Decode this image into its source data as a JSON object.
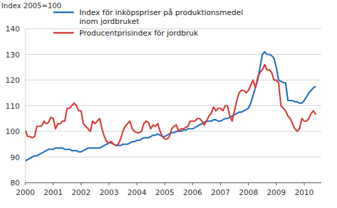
{
  "chart_data": {
    "type": "line",
    "y_label": "Index 2005=100",
    "categories": [
      "2000",
      null,
      null,
      null,
      null,
      null,
      null,
      null,
      null,
      null,
      null,
      null,
      "2001",
      null,
      null,
      null,
      null,
      null,
      null,
      null,
      null,
      null,
      null,
      null,
      "2002",
      null,
      null,
      null,
      null,
      null,
      null,
      null,
      null,
      null,
      null,
      null,
      "2003",
      null,
      null,
      null,
      null,
      null,
      null,
      null,
      null,
      null,
      null,
      null,
      "2004",
      null,
      null,
      null,
      null,
      null,
      null,
      null,
      null,
      null,
      null,
      null,
      "2005",
      null,
      null,
      null,
      null,
      null,
      null,
      null,
      null,
      null,
      null,
      null,
      "2006",
      null,
      null,
      null,
      null,
      null,
      null,
      null,
      null,
      null,
      null,
      null,
      "2007",
      null,
      null,
      null,
      null,
      null,
      null,
      null,
      null,
      null,
      null,
      null,
      "2008",
      null,
      null,
      null,
      null,
      null,
      null,
      null,
      null,
      null,
      null,
      null,
      "2009",
      null,
      null,
      null,
      null,
      null,
      null,
      null,
      null,
      null,
      null,
      null,
      "2010",
      null,
      null,
      null,
      null,
      null
    ],
    "series": [
      {
        "name": "Index för inköpspriser på produktionsmedel inom jordbruket",
        "color": "#2270c0",
        "values": [
          88.5,
          89,
          89.5,
          90,
          90.5,
          90.5,
          91,
          91.5,
          92,
          92.5,
          93,
          93,
          93,
          93.5,
          93.5,
          93.5,
          93.5,
          93,
          93,
          93,
          92.5,
          92.5,
          92.5,
          92,
          92,
          92.5,
          93,
          93.5,
          93.5,
          93.5,
          93.5,
          93.5,
          93.5,
          94,
          94.5,
          95,
          95.5,
          95.5,
          95,
          94.5,
          94.5,
          94.5,
          95,
          95,
          95,
          95.5,
          96,
          96,
          96.5,
          96.5,
          97,
          97.5,
          97.5,
          97.5,
          98,
          98.5,
          98.5,
          99,
          98.5,
          98,
          98,
          98.5,
          99,
          99.5,
          99.5,
          100,
          100,
          100,
          100.5,
          100.5,
          101,
          101,
          101,
          101.5,
          102,
          102.5,
          103,
          103.5,
          104,
          104,
          104,
          104.5,
          104.5,
          104,
          104,
          104.5,
          105,
          105,
          105.5,
          106,
          106.5,
          107,
          107.5,
          107.5,
          108,
          108.5,
          109,
          111,
          114,
          117,
          120,
          125,
          130,
          131,
          130,
          130,
          129.5,
          128.5,
          125,
          120,
          119.5,
          119,
          119,
          112,
          112,
          112,
          111.5,
          111.5,
          111,
          111,
          112,
          113.5,
          115,
          116,
          117,
          117.5
        ]
      },
      {
        "name": "Producentprisindex för jordbruk",
        "color": "#d63c36",
        "values": [
          100.5,
          98,
          98,
          97.5,
          98,
          102,
          102,
          102,
          104,
          103,
          103.5,
          105.5,
          105,
          101,
          103,
          103,
          104,
          104,
          109,
          109,
          110,
          111,
          110,
          108,
          108,
          103,
          102,
          101,
          100,
          104,
          103,
          104,
          105,
          101,
          98,
          96,
          95.5,
          96,
          95,
          94.5,
          95,
          97,
          100,
          102,
          103,
          104,
          101,
          100,
          99.5,
          99.5,
          100,
          103,
          104,
          103.5,
          101,
          102.5,
          102,
          103,
          100,
          98,
          97,
          97,
          98,
          101,
          102,
          102.5,
          100,
          101,
          101,
          101.5,
          102,
          104,
          104,
          104,
          105,
          105,
          104,
          102.5,
          104,
          106,
          107,
          109.5,
          108,
          109,
          109,
          108,
          110,
          110,
          106,
          104,
          108,
          112,
          115,
          116,
          116,
          115,
          116,
          118,
          120,
          117,
          121,
          123,
          124,
          126,
          124,
          124,
          123,
          120,
          120,
          119,
          110,
          109,
          108,
          106,
          105,
          103,
          101,
          100,
          101,
          105,
          104,
          104,
          105,
          107,
          108,
          106.5
        ]
      }
    ],
    "ylim": [
      80,
      140
    ],
    "yticks": [
      80,
      90,
      100,
      110,
      120,
      130,
      140
    ],
    "grid": true,
    "legend": "top-left"
  }
}
